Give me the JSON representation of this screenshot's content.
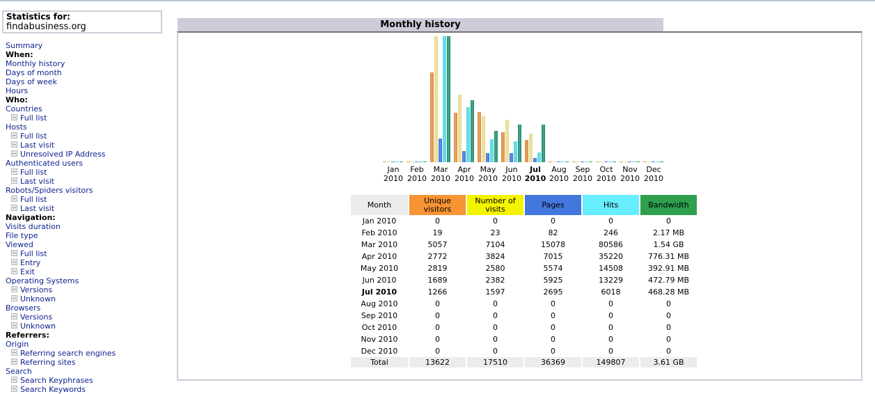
{
  "statistics": {
    "label": "Statistics for:",
    "site": "findabusiness.org"
  },
  "nav": [
    {
      "type": "link",
      "label": "Summary"
    },
    {
      "type": "header",
      "label": "When:"
    },
    {
      "type": "link",
      "label": "Monthly history"
    },
    {
      "type": "link",
      "label": "Days of month"
    },
    {
      "type": "link",
      "label": "Days of week"
    },
    {
      "type": "link",
      "label": "Hours"
    },
    {
      "type": "header",
      "label": "Who:"
    },
    {
      "type": "link",
      "label": "Countries"
    },
    {
      "type": "sub",
      "label": "Full list"
    },
    {
      "type": "link",
      "label": "Hosts"
    },
    {
      "type": "sub",
      "label": "Full list"
    },
    {
      "type": "sub",
      "label": "Last visit"
    },
    {
      "type": "sub",
      "label": "Unresolved IP Address"
    },
    {
      "type": "link",
      "label": "Authenticated users"
    },
    {
      "type": "sub",
      "label": "Full list"
    },
    {
      "type": "sub",
      "label": "Last visit"
    },
    {
      "type": "link",
      "label": "Robots/Spiders visitors"
    },
    {
      "type": "sub",
      "label": "Full list"
    },
    {
      "type": "sub",
      "label": "Last visit"
    },
    {
      "type": "header",
      "label": "Navigation:"
    },
    {
      "type": "link",
      "label": "Visits duration"
    },
    {
      "type": "link",
      "label": "File type"
    },
    {
      "type": "link",
      "label": "Viewed"
    },
    {
      "type": "sub",
      "label": "Full list"
    },
    {
      "type": "sub",
      "label": "Entry"
    },
    {
      "type": "sub",
      "label": "Exit"
    },
    {
      "type": "link",
      "label": "Operating Systems"
    },
    {
      "type": "sub",
      "label": "Versions"
    },
    {
      "type": "sub",
      "label": "Unknown"
    },
    {
      "type": "link",
      "label": "Browsers"
    },
    {
      "type": "sub",
      "label": "Versions"
    },
    {
      "type": "sub",
      "label": "Unknown"
    },
    {
      "type": "header",
      "label": "Referrers:"
    },
    {
      "type": "link",
      "label": "Origin"
    },
    {
      "type": "sub",
      "label": "Referring search engines"
    },
    {
      "type": "sub",
      "label": "Referring sites"
    },
    {
      "type": "link",
      "label": "Search"
    },
    {
      "type": "sub",
      "label": "Search Keyphrases"
    },
    {
      "type": "sub",
      "label": "Search Keywords"
    }
  ],
  "section_title": "Monthly history",
  "colors": {
    "unique_visitors": "#f79433",
    "visits": "#f4f400",
    "pages": "#4477dd",
    "hits": "#66eeff",
    "bandwidth": "#2ea04d",
    "bar_unique": "#d9893a",
    "bar_visits": "#e8d98a",
    "bar_pages": "#3b6cd6",
    "bar_hits": "#48d6dc",
    "bar_bandwidth": "#17876a"
  },
  "table": {
    "headers": [
      "Month",
      "Unique visitors",
      "Number of visits",
      "Pages",
      "Hits",
      "Bandwidth"
    ],
    "rows": [
      {
        "month": "Jan 2010",
        "u": "0",
        "v": "0",
        "p": "0",
        "h": "0",
        "b": "0"
      },
      {
        "month": "Feb 2010",
        "u": "19",
        "v": "23",
        "p": "82",
        "h": "246",
        "b": "2.17 MB"
      },
      {
        "month": "Mar 2010",
        "u": "5057",
        "v": "7104",
        "p": "15078",
        "h": "80586",
        "b": "1.54 GB"
      },
      {
        "month": "Apr 2010",
        "u": "2772",
        "v": "3824",
        "p": "7015",
        "h": "35220",
        "b": "776.31 MB"
      },
      {
        "month": "May 2010",
        "u": "2819",
        "v": "2580",
        "p": "5574",
        "h": "14508",
        "b": "392.91 MB"
      },
      {
        "month": "Jun 2010",
        "u": "1689",
        "v": "2382",
        "p": "5925",
        "h": "13229",
        "b": "472.79 MB"
      },
      {
        "month": "Jul 2010",
        "u": "1266",
        "v": "1597",
        "p": "2695",
        "h": "6018",
        "b": "468.28 MB",
        "current": true
      },
      {
        "month": "Aug 2010",
        "u": "0",
        "v": "0",
        "p": "0",
        "h": "0",
        "b": "0"
      },
      {
        "month": "Sep 2010",
        "u": "0",
        "v": "0",
        "p": "0",
        "h": "0",
        "b": "0"
      },
      {
        "month": "Oct 2010",
        "u": "0",
        "v": "0",
        "p": "0",
        "h": "0",
        "b": "0"
      },
      {
        "month": "Nov 2010",
        "u": "0",
        "v": "0",
        "p": "0",
        "h": "0",
        "b": "0"
      },
      {
        "month": "Dec 2010",
        "u": "0",
        "v": "0",
        "p": "0",
        "h": "0",
        "b": "0"
      }
    ],
    "total": {
      "month": "Total",
      "u": "13622",
      "v": "17510",
      "p": "36369",
      "h": "149807",
      "b": "3.61 GB"
    }
  },
  "chart_data": {
    "type": "bar",
    "title": "Monthly history",
    "categories": [
      "Jan 2010",
      "Feb 2010",
      "Mar 2010",
      "Apr 2010",
      "May 2010",
      "Jun 2010",
      "Jul 2010",
      "Aug 2010",
      "Sep 2010",
      "Oct 2010",
      "Nov 2010",
      "Dec 2010"
    ],
    "x_labels": [
      [
        "Jan",
        "2010"
      ],
      [
        "Feb",
        "2010"
      ],
      [
        "Mar",
        "2010"
      ],
      [
        "Apr",
        "2010"
      ],
      [
        "May",
        "2010"
      ],
      [
        "Jun",
        "2010"
      ],
      [
        "Jul",
        "2010"
      ],
      [
        "Aug",
        "2010"
      ],
      [
        "Sep",
        "2010"
      ],
      [
        "Oct",
        "2010"
      ],
      [
        "Nov",
        "2010"
      ],
      [
        "Dec",
        "2010"
      ]
    ],
    "current_index": 6,
    "series": [
      {
        "name": "Unique visitors",
        "key": "u",
        "values": [
          0,
          19,
          5057,
          2772,
          2819,
          1689,
          1266,
          0,
          0,
          0,
          0,
          0
        ],
        "scale_group": "visits"
      },
      {
        "name": "Number of visits",
        "key": "v",
        "values": [
          0,
          23,
          7104,
          3824,
          2580,
          2382,
          1597,
          0,
          0,
          0,
          0,
          0
        ],
        "scale_group": "visits"
      },
      {
        "name": "Pages",
        "key": "p",
        "values": [
          0,
          82,
          15078,
          7015,
          5574,
          5925,
          2695,
          0,
          0,
          0,
          0,
          0
        ],
        "scale_group": "hits"
      },
      {
        "name": "Hits",
        "key": "h",
        "values": [
          0,
          246,
          80586,
          35220,
          14508,
          13229,
          6018,
          0,
          0,
          0,
          0,
          0
        ],
        "scale_group": "hits"
      },
      {
        "name": "Bandwidth (MB)",
        "key": "b",
        "values": [
          0,
          2.17,
          1576.96,
          776.31,
          392.91,
          472.79,
          468.28,
          0,
          0,
          0,
          0,
          0
        ],
        "scale_group": "bandwidth"
      }
    ],
    "xlabel": "",
    "ylabel": "",
    "grid": false,
    "legend": "none"
  }
}
